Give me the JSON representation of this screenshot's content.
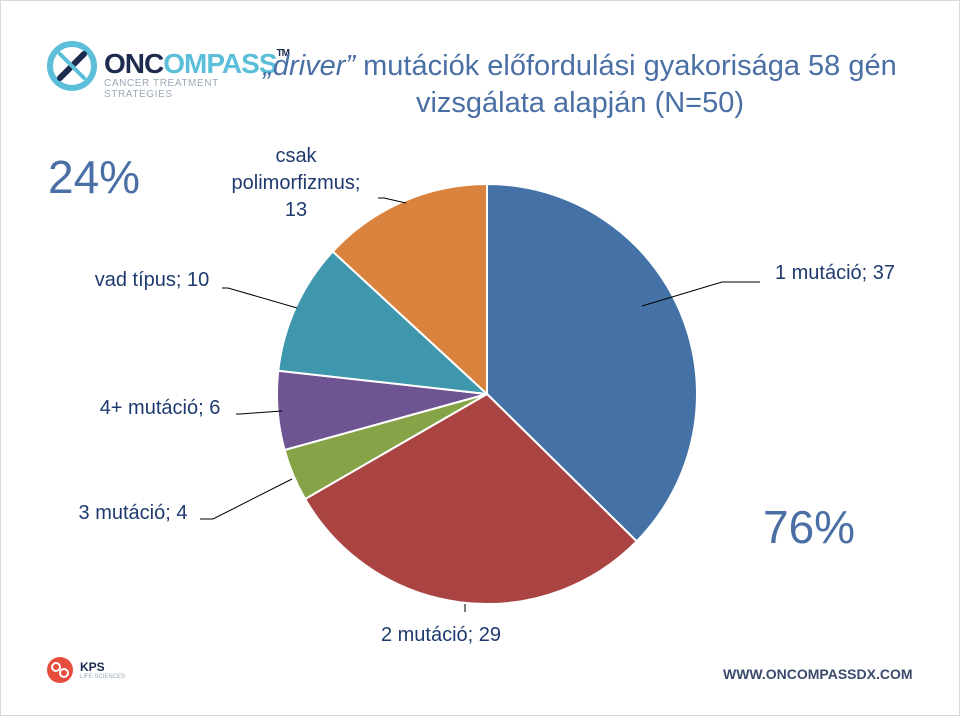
{
  "title": {
    "quoted": "„driver”",
    "line1_rest": " mutációk előfordulási gyakorisága 58 gén",
    "line2": "vizsgálata alapján (N=50)"
  },
  "logo": {
    "word_a": "ONC",
    "word_b": "OMPASS",
    "tm": "TM",
    "tagline": "CANCER TREATMENT STRATEGIES"
  },
  "annotations": {
    "left_percent": "24%",
    "right_percent": "76%"
  },
  "footer": {
    "kps_name": "KPS",
    "kps_sub": "LIFE SCIENCES",
    "url": "WWW.ONCOMPASSDX.COM"
  },
  "chart_data": {
    "type": "pie",
    "title": "„driver” mutációk előfordulási gyakorisága 58 gén vizsgálata alapján (N=50)",
    "start_angle_deg": 0,
    "direction": "clockwise",
    "slices": [
      {
        "label": "1 mutáció; 37",
        "value": 37,
        "color": "#4472a6"
      },
      {
        "label": "2 mutáció; 29",
        "value": 29,
        "color": "#a94442"
      },
      {
        "label": "3 mutáció; 4",
        "value": 4,
        "color": "#86a447"
      },
      {
        "label": "4+ mutáció; 6",
        "value": 6,
        "color": "#6e5592"
      },
      {
        "label": "vad típus; 10",
        "value": 10,
        "color": "#3f97ad"
      },
      {
        "label": "csak polimorfizmus; 13",
        "value": 13,
        "color": "#d9833f"
      }
    ],
    "label_lines": {
      "csak polimorfizmus; 13": [
        "csak",
        "polimorfizmus;",
        "13"
      ]
    }
  }
}
